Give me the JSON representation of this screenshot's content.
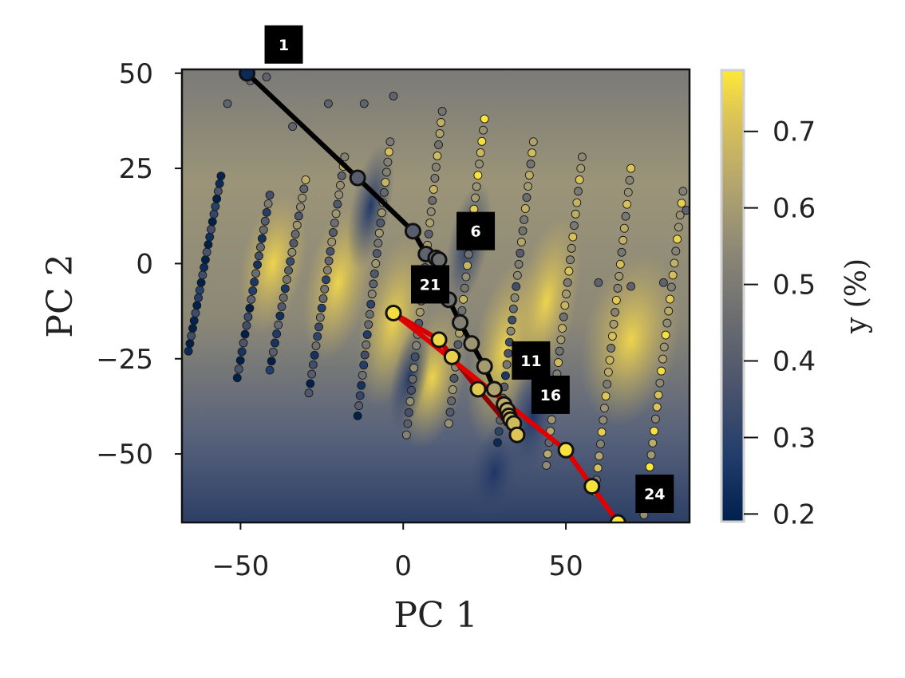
{
  "chart_data": {
    "type": "scatter",
    "title": "",
    "xlabel": "PC 1",
    "ylabel": "PC 2",
    "xlim": [
      -68,
      88
    ],
    "ylim": [
      -68,
      51
    ],
    "xticks": [
      {
        "value": -50,
        "label": "−50"
      },
      {
        "value": 0,
        "label": "0"
      },
      {
        "value": 50,
        "label": "50"
      }
    ],
    "yticks": [
      {
        "value": 50,
        "label": "50"
      },
      {
        "value": 25,
        "label": "25"
      },
      {
        "value": 0,
        "label": "0"
      },
      {
        "value": -25,
        "label": "−25"
      },
      {
        "value": -50,
        "label": "−50"
      }
    ],
    "grid": false,
    "background": "contour map of predicted y (%) across PC 1 / PC 2",
    "colorbar": {
      "label": "y (%)",
      "colormap": "cividis",
      "range": [
        0.19,
        0.78
      ],
      "ticks": [
        {
          "value": 0.7,
          "label": "0.7"
        },
        {
          "value": 0.6,
          "label": "0.6"
        },
        {
          "value": 0.5,
          "label": "0.5"
        },
        {
          "value": 0.4,
          "label": "0.4"
        },
        {
          "value": 0.3,
          "label": "0.3"
        },
        {
          "value": 0.2,
          "label": "0.2"
        }
      ]
    },
    "colors": {
      "trajectory_early": "#000000",
      "trajectory_late": "#e00000",
      "marker_edge": "#111111"
    },
    "trajectory": [
      {
        "step": 1,
        "x": -48,
        "y": 50,
        "value": 0.22
      },
      {
        "step": 2,
        "x": -14,
        "y": 22.5,
        "value": 0.4
      },
      {
        "step": 3,
        "x": 3,
        "y": 8.5,
        "value": 0.4
      },
      {
        "step": 4,
        "x": 7,
        "y": 2.5,
        "value": 0.42
      },
      {
        "step": 5,
        "x": 10,
        "y": 1.5,
        "value": 0.44
      },
      {
        "step": 6,
        "x": 11,
        "y": 1.0,
        "value": 0.46
      },
      {
        "step": 7,
        "x": 14,
        "y": -9.5,
        "value": 0.47
      },
      {
        "step": 8,
        "x": 17.5,
        "y": -15.5,
        "value": 0.52
      },
      {
        "step": 9,
        "x": 21,
        "y": -21,
        "value": 0.58
      },
      {
        "step": 10,
        "x": 25,
        "y": -27,
        "value": 0.6
      },
      {
        "step": 11,
        "x": 28,
        "y": -33,
        "value": 0.62
      },
      {
        "step": 12,
        "x": 31,
        "y": -37,
        "value": 0.64
      },
      {
        "step": 13,
        "x": 32,
        "y": -38.5,
        "value": 0.66
      },
      {
        "step": 14,
        "x": 32.5,
        "y": -40,
        "value": 0.67
      },
      {
        "step": 15,
        "x": 33,
        "y": -41,
        "value": 0.68
      },
      {
        "step": 16,
        "x": 34,
        "y": -42,
        "value": 0.69
      },
      {
        "step": 17,
        "x": 35,
        "y": -45,
        "value": 0.72
      },
      {
        "step": 18,
        "x": 23,
        "y": -33,
        "value": 0.73
      },
      {
        "step": 19,
        "x": 15,
        "y": -24.5,
        "value": 0.74
      },
      {
        "step": 20,
        "x": 11,
        "y": -20,
        "value": 0.75
      },
      {
        "step": 21,
        "x": -3,
        "y": -13,
        "value": 0.76
      },
      {
        "step": 22,
        "x": 50,
        "y": -49,
        "value": 0.77
      },
      {
        "step": 23,
        "x": 58,
        "y": -58.5,
        "value": 0.77
      },
      {
        "step": 24,
        "x": 66,
        "y": -68,
        "value": 0.78
      }
    ],
    "step_labels": [
      {
        "text": "1",
        "step": 1
      },
      {
        "text": "6",
        "step": 6
      },
      {
        "text": "21",
        "step": 21
      },
      {
        "text": "11",
        "step": 11
      },
      {
        "text": "16",
        "step": 16
      },
      {
        "text": "24",
        "step": 24
      }
    ],
    "scatter_lines": [
      {
        "x0": -66,
        "y0": -23,
        "x1": -56,
        "y1": 23,
        "v0": 0.22,
        "v1": 0.26,
        "n": 24
      },
      {
        "x0": -51,
        "y0": -30,
        "x1": -41,
        "y1": 18,
        "v0": 0.24,
        "v1": 0.4,
        "n": 22
      },
      {
        "x0": -41,
        "y0": -28,
        "x1": -30,
        "y1": 22,
        "v0": 0.26,
        "v1": 0.55,
        "n": 22
      },
      {
        "x0": -29,
        "y0": -34,
        "x1": -18,
        "y1": 28,
        "v0": 0.3,
        "v1": 0.55,
        "n": 26
      },
      {
        "x0": -14,
        "y0": -40,
        "x1": -4,
        "y1": 32,
        "v0": 0.3,
        "v1": 0.6,
        "n": 28
      },
      {
        "x0": 1,
        "y0": -45,
        "x1": 12,
        "y1": 40,
        "v0": 0.42,
        "v1": 0.6,
        "n": 30
      },
      {
        "x0": 14,
        "y0": -42,
        "x1": 25,
        "y1": 38,
        "v0": 0.45,
        "v1": 0.7,
        "n": 28
      },
      {
        "x0": 29,
        "y0": -47,
        "x1": 40,
        "y1": 32,
        "v0": 0.3,
        "v1": 0.62,
        "n": 28
      },
      {
        "x0": 44,
        "y0": -53,
        "x1": 55,
        "y1": 28,
        "v0": 0.55,
        "v1": 0.62,
        "n": 28
      },
      {
        "x0": 59,
        "y0": -60,
        "x1": 70,
        "y1": 25,
        "v0": 0.62,
        "v1": 0.6,
        "n": 28
      },
      {
        "x0": 74,
        "y0": -66,
        "x1": 86,
        "y1": 19,
        "v0": 0.68,
        "v1": 0.62,
        "n": 28
      }
    ],
    "extra_points": [
      {
        "x": -54,
        "y": 42
      },
      {
        "x": -47,
        "y": 48
      },
      {
        "x": -42,
        "y": 49
      },
      {
        "x": -34,
        "y": 36
      },
      {
        "x": -23,
        "y": 42
      },
      {
        "x": -12,
        "y": 42
      },
      {
        "x": -3,
        "y": 44
      },
      {
        "x": 44,
        "y": -35
      },
      {
        "x": 60,
        "y": -5
      },
      {
        "x": 70,
        "y": -6
      },
      {
        "x": 80,
        "y": -5
      },
      {
        "x": 87,
        "y": 14
      }
    ]
  }
}
